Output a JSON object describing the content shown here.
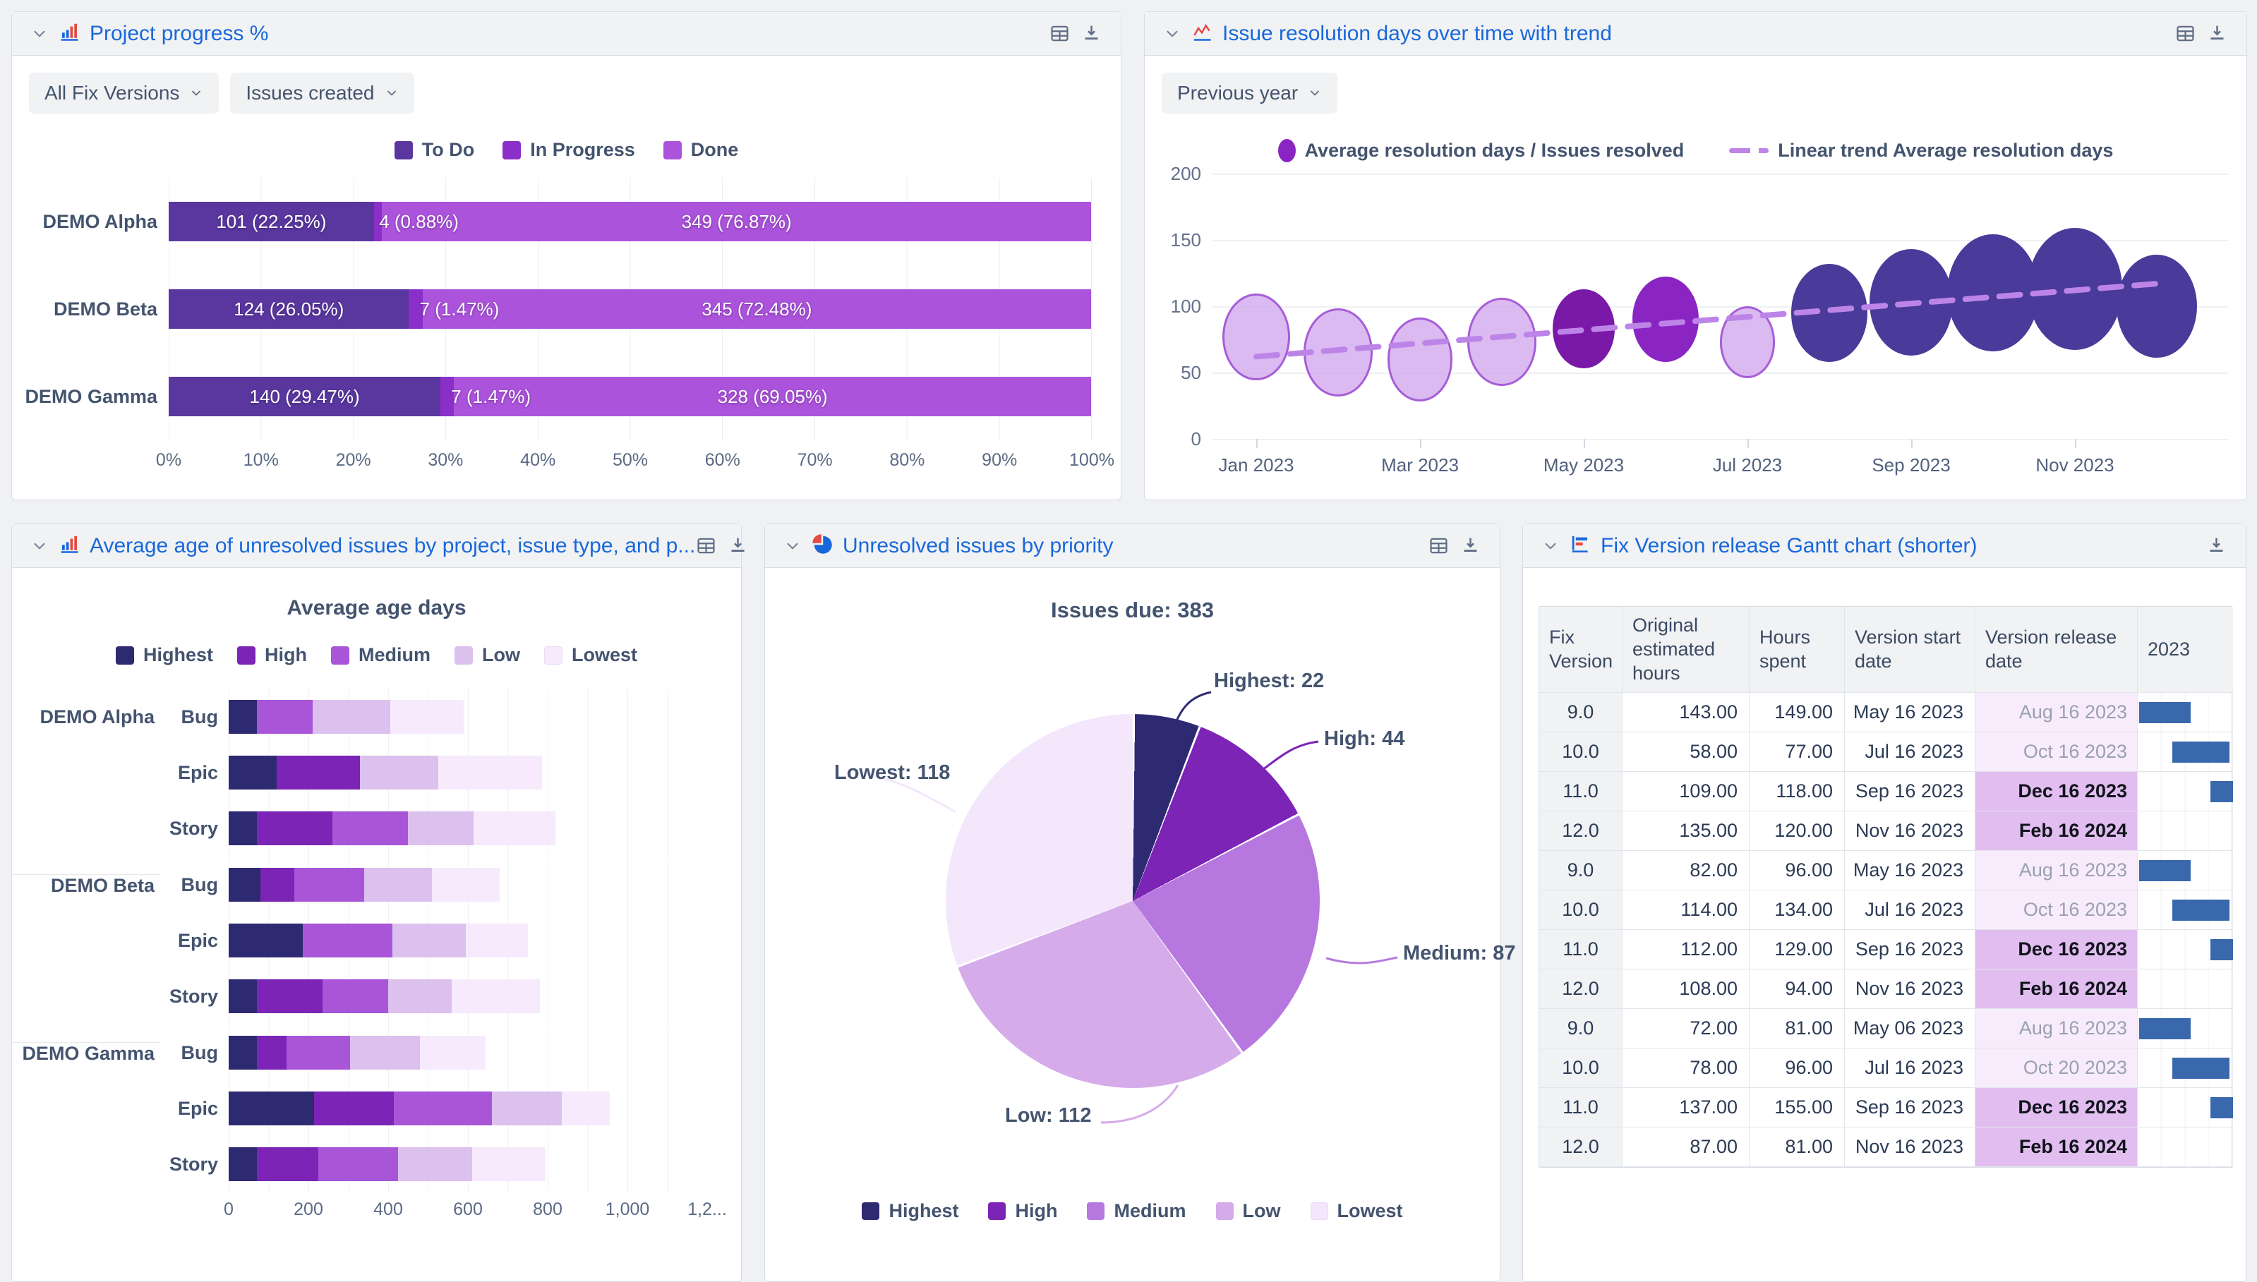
{
  "progress_panel": {
    "title": "Project progress %",
    "filters": [
      {
        "label": "All Fix Versions"
      },
      {
        "label": "Issues created"
      }
    ],
    "legend": [
      {
        "label": "To Do",
        "color": "#59379F"
      },
      {
        "label": "In Progress",
        "color": "#8B2FC9"
      },
      {
        "label": "Done",
        "color": "#AC53DC"
      }
    ],
    "x_ticks": [
      "0%",
      "10%",
      "20%",
      "30%",
      "40%",
      "50%",
      "60%",
      "70%",
      "80%",
      "90%",
      "100%"
    ],
    "rows": [
      {
        "project": "DEMO Alpha",
        "segments": [
          {
            "status": "To Do",
            "pct": 22.25,
            "label": "101 (22.25%)"
          },
          {
            "status": "In Progress",
            "pct": 0.88,
            "label": "4 (0.88%)"
          },
          {
            "status": "Done",
            "pct": 76.87,
            "label": "349 (76.87%)"
          }
        ]
      },
      {
        "project": "DEMO Beta",
        "segments": [
          {
            "status": "To Do",
            "pct": 26.05,
            "label": "124 (26.05%)"
          },
          {
            "status": "In Progress",
            "pct": 1.47,
            "label": "7 (1.47%)"
          },
          {
            "status": "Done",
            "pct": 72.48,
            "label": "345 (72.48%)"
          }
        ]
      },
      {
        "project": "DEMO Gamma",
        "segments": [
          {
            "status": "To Do",
            "pct": 29.47,
            "label": "140 (29.47%)"
          },
          {
            "status": "In Progress",
            "pct": 1.47,
            "label": "7 (1.47%)"
          },
          {
            "status": "Done",
            "pct": 69.05,
            "label": "328 (69.05%)"
          }
        ]
      }
    ]
  },
  "resolution_panel": {
    "title": "Issue resolution days over time with trend",
    "filters": [
      {
        "label": "Previous year"
      }
    ],
    "legend": {
      "bubble": "Average resolution days / Issues resolved",
      "trend": "Linear trend Average resolution days"
    },
    "y_ticks": [
      200,
      150,
      100,
      50,
      0
    ],
    "x_ticks": [
      "Jan 2023",
      "Mar 2023",
      "May 2023",
      "Jul 2023",
      "Sep 2023",
      "Nov 2023"
    ],
    "ylim": [
      0,
      200
    ],
    "points": [
      {
        "month": "Jan 2023",
        "value": 77,
        "size": 57,
        "tone": "light"
      },
      {
        "month": "Feb 2023",
        "value": 65,
        "size": 58,
        "tone": "light"
      },
      {
        "month": "Mar 2023",
        "value": 60,
        "size": 55,
        "tone": "light"
      },
      {
        "month": "Apr 2023",
        "value": 73,
        "size": 58,
        "tone": "light"
      },
      {
        "month": "May 2023",
        "value": 83,
        "size": 52,
        "tone": "vivid_dark"
      },
      {
        "month": "Jun 2023",
        "value": 90,
        "size": 56,
        "tone": "vivid"
      },
      {
        "month": "Jul 2023",
        "value": 73,
        "size": 47,
        "tone": "light"
      },
      {
        "month": "Aug 2023",
        "value": 95,
        "size": 64,
        "tone": "dark"
      },
      {
        "month": "Sep 2023",
        "value": 103,
        "size": 70,
        "tone": "dark"
      },
      {
        "month": "Oct 2023",
        "value": 110,
        "size": 77,
        "tone": "dark"
      },
      {
        "month": "Nov 2023",
        "value": 113,
        "size": 80,
        "tone": "dark"
      },
      {
        "month": "Dec 2023",
        "value": 100,
        "size": 68,
        "tone": "dark"
      }
    ],
    "trend": {
      "start_value": 62,
      "end_value": 117
    },
    "colors": {
      "light_fill": "rgba(207,166,236,0.78)",
      "light_stroke": "#A65DD8",
      "vivid_dark": "#7A18A8",
      "vivid": "#8A25C4",
      "dark": "#4A3A99",
      "trend": "#BD84E8"
    }
  },
  "age_panel": {
    "title": "Average age of unresolved issues by project, issue type, and p...",
    "chart_title": "Average age days",
    "legend": [
      {
        "label": "Highest",
        "color": "#2E2A72"
      },
      {
        "label": "High",
        "color": "#7B24B6"
      },
      {
        "label": "Medium",
        "color": "#A855D8"
      },
      {
        "label": "Low",
        "color": "#DCC0ED"
      },
      {
        "label": "Lowest",
        "color": "#F6EAFC"
      }
    ],
    "x_ticks": [
      "0",
      "200",
      "400",
      "600",
      "800",
      "1,000",
      "1,2..."
    ],
    "xmax": 1200,
    "groups": [
      {
        "project": "DEMO Alpha",
        "rows": [
          {
            "type": "Bug",
            "values": [
              70,
              0,
              140,
              195,
              185
            ]
          },
          {
            "type": "Epic",
            "values": [
              120,
              210,
              0,
              195,
              260
            ]
          },
          {
            "type": "Story",
            "values": [
              70,
              190,
              190,
              165,
              205
            ]
          }
        ]
      },
      {
        "project": "DEMO Beta",
        "rows": [
          {
            "type": "Bug",
            "values": [
              80,
              85,
              175,
              170,
              170
            ]
          },
          {
            "type": "Epic",
            "values": [
              185,
              0,
              225,
              185,
              155
            ]
          },
          {
            "type": "Story",
            "values": [
              70,
              165,
              165,
              160,
              220
            ]
          }
        ]
      },
      {
        "project": "DEMO Gamma",
        "rows": [
          {
            "type": "Bug",
            "values": [
              70,
              75,
              160,
              175,
              165
            ]
          },
          {
            "type": "Epic",
            "values": [
              215,
              200,
              245,
              175,
              120
            ]
          },
          {
            "type": "Story",
            "values": [
              70,
              155,
              200,
              185,
              185
            ]
          }
        ]
      }
    ]
  },
  "priority_panel": {
    "title": "Unresolved issues by priority",
    "total_label": "Issues due: 383",
    "slices": [
      {
        "label": "Highest",
        "value": 22,
        "display": "Highest: 22",
        "color": "#2E2A72"
      },
      {
        "label": "High",
        "value": 44,
        "display": "High: 44",
        "color": "#7B24B6"
      },
      {
        "label": "Medium",
        "value": 87,
        "display": "Medium: 87",
        "color": "#B678DE"
      },
      {
        "label": "Low",
        "value": 112,
        "display": "Low: 112",
        "color": "#D5ABE9"
      },
      {
        "label": "Lowest",
        "value": 118,
        "display": "Lowest: 118",
        "color": "#F4E6FB"
      }
    ]
  },
  "gantt_panel": {
    "title": "Fix Version release Gantt chart (shorter)",
    "columns": [
      "Fix Version",
      "Original estimated hours",
      "Hours spent",
      "Version start date",
      "Version release date",
      "2023"
    ],
    "bar_color": "#3A68AC",
    "bar_spans": {
      "aug": [
        1.5,
        54
      ],
      "oct": [
        36,
        60
      ],
      "dec": [
        76,
        24
      ]
    },
    "rows": [
      {
        "fix": "9.0",
        "est": "143.00",
        "spent": "149.00",
        "start": "May 16 2023",
        "release": "Aug 16 2023",
        "released": true,
        "bar": "aug"
      },
      {
        "fix": "10.0",
        "est": "58.00",
        "spent": "77.00",
        "start": "Jul 16 2023",
        "release": "Oct 16 2023",
        "released": true,
        "bar": "oct"
      },
      {
        "fix": "11.0",
        "est": "109.00",
        "spent": "118.00",
        "start": "Sep 16 2023",
        "release": "Dec 16 2023",
        "released": false,
        "bar": "dec"
      },
      {
        "fix": "12.0",
        "est": "135.00",
        "spent": "120.00",
        "start": "Nov 16 2023",
        "release": "Feb 16 2024",
        "released": false,
        "bar": "none"
      },
      {
        "fix": "9.0",
        "est": "82.00",
        "spent": "96.00",
        "start": "May 16 2023",
        "release": "Aug 16 2023",
        "released": true,
        "bar": "aug"
      },
      {
        "fix": "10.0",
        "est": "114.00",
        "spent": "134.00",
        "start": "Jul 16 2023",
        "release": "Oct 16 2023",
        "released": true,
        "bar": "oct"
      },
      {
        "fix": "11.0",
        "est": "112.00",
        "spent": "129.00",
        "start": "Sep 16 2023",
        "release": "Dec 16 2023",
        "released": false,
        "bar": "dec"
      },
      {
        "fix": "12.0",
        "est": "108.00",
        "spent": "94.00",
        "start": "Nov 16 2023",
        "release": "Feb 16 2024",
        "released": false,
        "bar": "none"
      },
      {
        "fix": "9.0",
        "est": "72.00",
        "spent": "81.00",
        "start": "May 06 2023",
        "release": "Aug 16 2023",
        "released": true,
        "bar": "aug"
      },
      {
        "fix": "10.0",
        "est": "78.00",
        "spent": "96.00",
        "start": "Jul 16 2023",
        "release": "Oct 20 2023",
        "released": true,
        "bar": "oct"
      },
      {
        "fix": "11.0",
        "est": "137.00",
        "spent": "155.00",
        "start": "Sep 16 2023",
        "release": "Dec 16 2023",
        "released": false,
        "bar": "dec"
      },
      {
        "fix": "12.0",
        "est": "87.00",
        "spent": "81.00",
        "start": "Nov 16 2023",
        "release": "Feb 16 2024",
        "released": false,
        "bar": "none"
      }
    ]
  }
}
